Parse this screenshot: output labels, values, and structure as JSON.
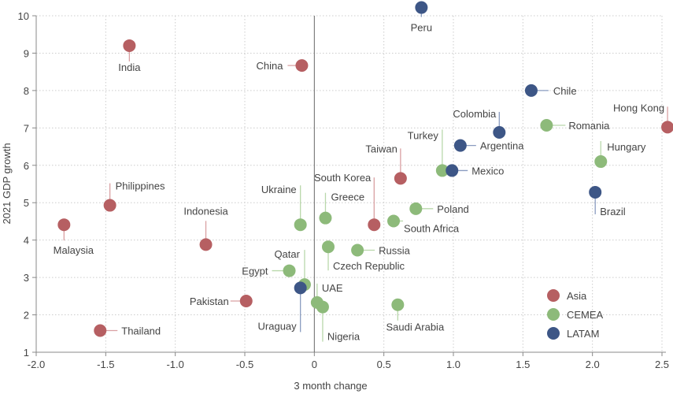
{
  "chart_data": {
    "type": "scatter",
    "xlabel": "3 month change",
    "ylabel": "2021 GDP growth",
    "xlim": [
      -2.0,
      2.5
    ],
    "ylim": [
      1,
      10
    ],
    "xticks": [
      "-2.0",
      "-1.5",
      "-1.0",
      "-0.5",
      "0",
      "0.5",
      "1.0",
      "1.5",
      "2.0",
      "2.5"
    ],
    "yticks": [
      "1",
      "2",
      "3",
      "4",
      "5",
      "6",
      "7",
      "8",
      "9",
      "10"
    ],
    "grid": true,
    "legend_position": "bottom-right",
    "series": [
      {
        "name": "Asia",
        "color": "#b65f62",
        "points": [
          {
            "label": "India",
            "x": -1.33,
            "y": 9.2
          },
          {
            "label": "China",
            "x": -0.09,
            "y": 8.67
          },
          {
            "label": "Hong Kong",
            "x": 2.54,
            "y": 7.02
          },
          {
            "label": "Taiwan",
            "x": 0.62,
            "y": 5.65
          },
          {
            "label": "Philippines",
            "x": -1.47,
            "y": 4.93
          },
          {
            "label": "South Korea",
            "x": 0.43,
            "y": 4.41
          },
          {
            "label": "Malaysia",
            "x": -1.8,
            "y": 4.41
          },
          {
            "label": "Indonesia",
            "x": -0.78,
            "y": 3.88
          },
          {
            "label": "Pakistan",
            "x": -0.49,
            "y": 2.37
          },
          {
            "label": "Thailand",
            "x": -1.54,
            "y": 1.58
          }
        ]
      },
      {
        "name": "CEMEA",
        "color": "#8dba7a",
        "points": [
          {
            "label": "Romania",
            "x": 1.67,
            "y": 7.07
          },
          {
            "label": "Hungary",
            "x": 2.06,
            "y": 6.1
          },
          {
            "label": "Turkey",
            "x": 0.92,
            "y": 5.86
          },
          {
            "label": "Greece",
            "x": 0.08,
            "y": 4.59
          },
          {
            "label": "Ukraine",
            "x": -0.1,
            "y": 4.41
          },
          {
            "label": "Poland",
            "x": 0.73,
            "y": 4.84
          },
          {
            "label": "South Africa",
            "x": 0.57,
            "y": 4.51
          },
          {
            "label": "Russia",
            "x": 0.31,
            "y": 3.73
          },
          {
            "label": "Czech Republic",
            "x": 0.1,
            "y": 3.82
          },
          {
            "label": "Egypt",
            "x": -0.18,
            "y": 3.18
          },
          {
            "label": "Qatar",
            "x": -0.07,
            "y": 2.81
          },
          {
            "label": "UAE",
            "x": 0.02,
            "y": 2.33
          },
          {
            "label": "Nigeria",
            "x": 0.06,
            "y": 2.21
          },
          {
            "label": "Saudi Arabia",
            "x": 0.6,
            "y": 2.27
          }
        ]
      },
      {
        "name": "LATAM",
        "color": "#3d5686",
        "points": [
          {
            "label": "Peru",
            "x": 0.77,
            "y": 10.22
          },
          {
            "label": "Chile",
            "x": 1.56,
            "y": 8.0
          },
          {
            "label": "Colombia",
            "x": 1.33,
            "y": 6.88
          },
          {
            "label": "Argentina",
            "x": 1.05,
            "y": 6.53
          },
          {
            "label": "Mexico",
            "x": 0.99,
            "y": 5.86
          },
          {
            "label": "Brazil",
            "x": 2.02,
            "y": 5.28
          },
          {
            "label": "Uraguay",
            "x": -0.1,
            "y": 2.72
          }
        ]
      }
    ]
  }
}
